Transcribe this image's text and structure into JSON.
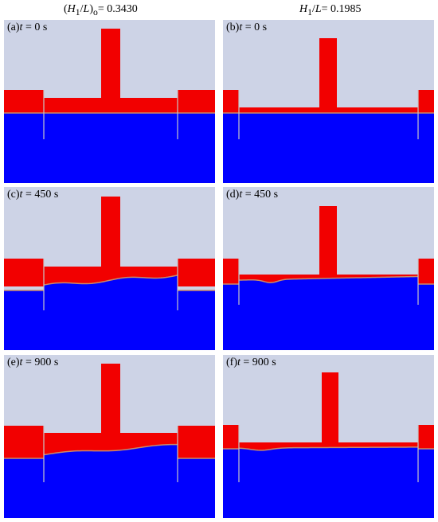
{
  "columns": {
    "left": {
      "prefix": "(",
      "var": "H",
      "sub": "1",
      "mid": "/",
      "var2": "L",
      "close": ")",
      "sub2": "o",
      "eq": "= 0.3430"
    },
    "right": {
      "var": "H",
      "sub": "1",
      "mid": "/",
      "var2": "L",
      "eq": "= 0.1985"
    }
  },
  "panels": [
    {
      "id": "a",
      "letter": "(a)",
      "tvar": "t",
      "time": " = 0 s"
    },
    {
      "id": "b",
      "letter": "(b)",
      "tvar": "t",
      "time": " = 0 s"
    },
    {
      "id": "c",
      "letter": "(c)",
      "tvar": "t",
      "time": " = 450 s"
    },
    {
      "id": "d",
      "letter": "(d)",
      "tvar": "t",
      "time": " = 450 s"
    },
    {
      "id": "e",
      "letter": "(e)",
      "tvar": "t",
      "time": " = 900 s"
    },
    {
      "id": "f",
      "letter": "(f)",
      "tvar": "t",
      "time": " = 900 s"
    }
  ],
  "colors": {
    "air": "#cdd3e6",
    "structure": "#f20000",
    "water": "#0000ff",
    "interface": "#c98a6a"
  }
}
